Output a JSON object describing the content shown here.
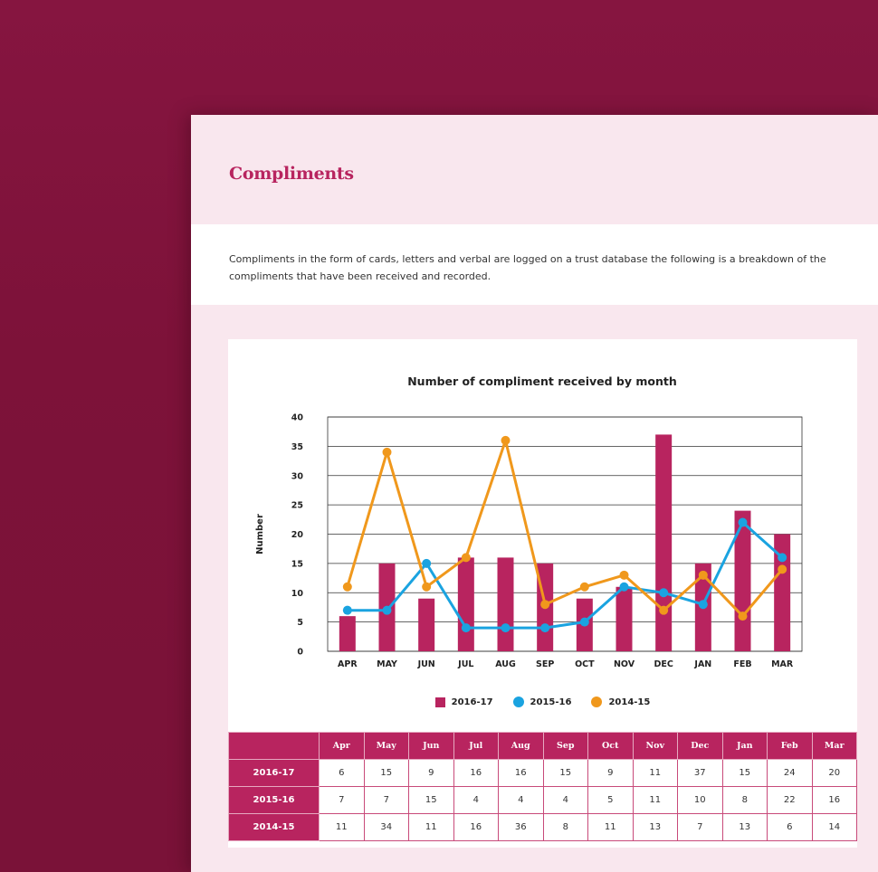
{
  "page": {
    "title": "Compliments",
    "intro": "Compliments in the form of cards, letters and verbal are logged on a trust database the following is a breakdown of the compliments that have been received and recorded."
  },
  "colors": {
    "background": "#7d1239",
    "accent": "#b8245f",
    "series_2016_17": "#b8245f",
    "series_2015_16": "#1aa3e0",
    "series_2014_15": "#f0981c"
  },
  "chart_data": {
    "type": "bar",
    "title": "Number of compliment received by month",
    "xlabel": "",
    "ylabel": "Number",
    "ylim": [
      0,
      40
    ],
    "yticks": [
      0,
      5,
      10,
      15,
      20,
      25,
      30,
      35,
      40
    ],
    "grid": true,
    "legend_position": "bottom",
    "categories": [
      "APR",
      "MAY",
      "JUN",
      "JUL",
      "AUG",
      "SEP",
      "OCT",
      "NOV",
      "DEC",
      "JAN",
      "FEB",
      "MAR"
    ],
    "series": [
      {
        "name": "2016-17",
        "type": "bar",
        "color": "#b8245f",
        "values": [
          6,
          15,
          9,
          16,
          16,
          15,
          9,
          11,
          37,
          15,
          24,
          20
        ]
      },
      {
        "name": "2015-16",
        "type": "line",
        "color": "#1aa3e0",
        "values": [
          7,
          7,
          15,
          4,
          4,
          4,
          5,
          11,
          10,
          8,
          22,
          16
        ]
      },
      {
        "name": "2014-15",
        "type": "line",
        "color": "#f0981c",
        "values": [
          11,
          34,
          11,
          16,
          36,
          8,
          11,
          13,
          7,
          13,
          6,
          14
        ]
      }
    ]
  },
  "table": {
    "corner": "",
    "columns": [
      "Apr",
      "May",
      "Jun",
      "Jul",
      "Aug",
      "Sep",
      "Oct",
      "Nov",
      "Dec",
      "Jan",
      "Feb",
      "Mar"
    ],
    "rows": [
      {
        "label": "2016-17",
        "values": [
          6,
          15,
          9,
          16,
          16,
          15,
          9,
          11,
          37,
          15,
          24,
          20
        ]
      },
      {
        "label": "2015-16",
        "values": [
          7,
          7,
          15,
          4,
          4,
          4,
          5,
          11,
          10,
          8,
          22,
          16
        ]
      },
      {
        "label": "2014-15",
        "values": [
          11,
          34,
          11,
          16,
          36,
          8,
          11,
          13,
          7,
          13,
          6,
          14
        ]
      }
    ]
  }
}
